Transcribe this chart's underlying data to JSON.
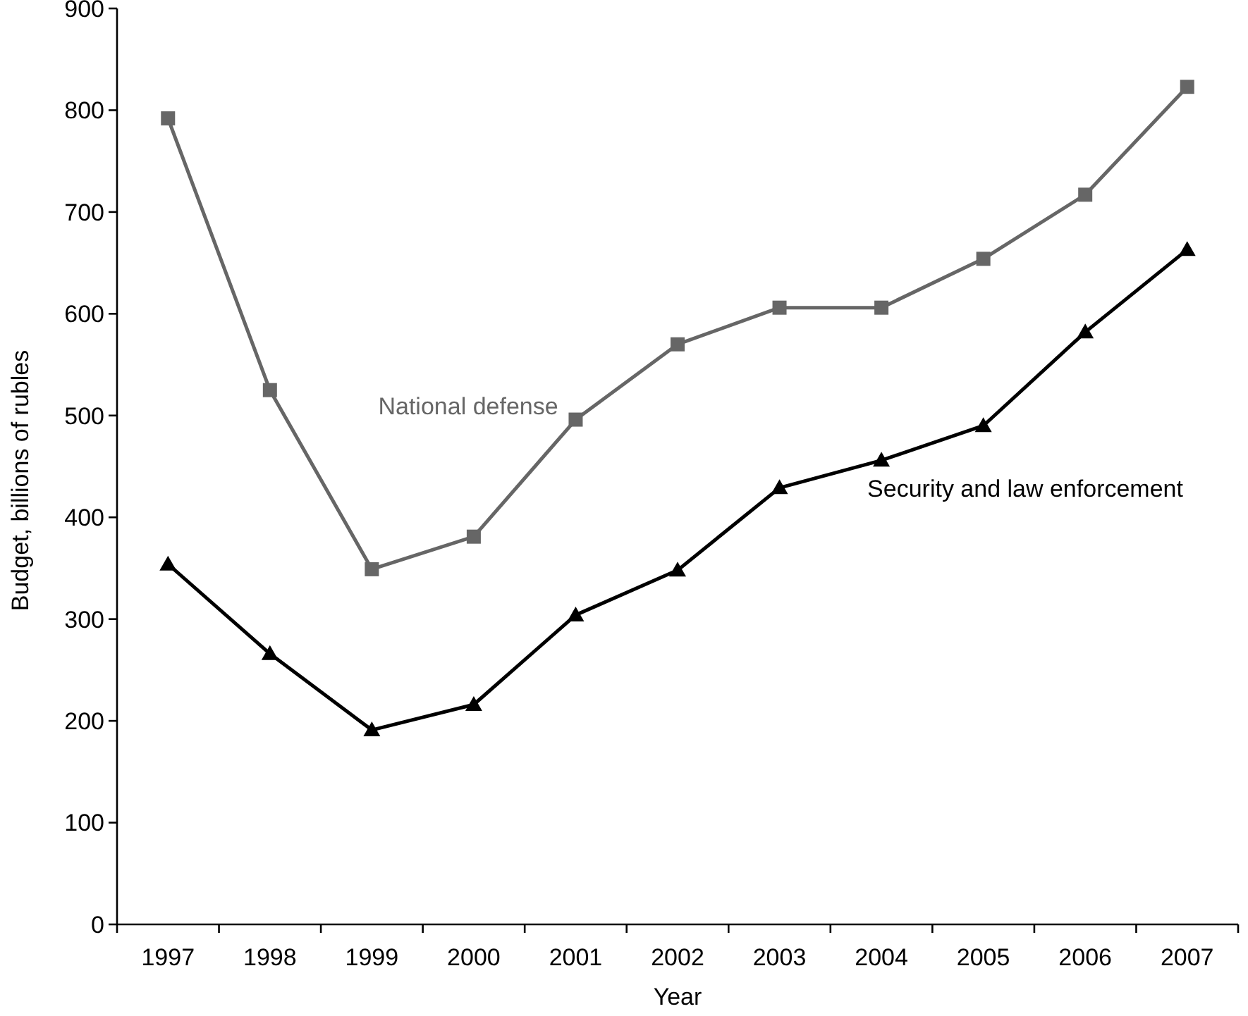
{
  "chart_data": {
    "type": "line",
    "xlabel": "Year",
    "ylabel": "Budget, billions of rubles",
    "categories": [
      "1997",
      "1998",
      "1999",
      "2000",
      "2001",
      "2002",
      "2003",
      "2004",
      "2005",
      "2006",
      "2007"
    ],
    "series": [
      {
        "name": "National defense",
        "color": "#666666",
        "marker": "square",
        "values": [
          792,
          525,
          349,
          381,
          496,
          570,
          606,
          606,
          654,
          717,
          823
        ]
      },
      {
        "name": "Security and law enforcement",
        "color": "#000000",
        "marker": "triangle",
        "values": [
          354,
          266,
          191,
          216,
          304,
          348,
          429,
          456,
          490,
          582,
          663
        ]
      }
    ],
    "ylim": [
      0,
      900
    ],
    "yticks": [
      0,
      100,
      200,
      300,
      400,
      500,
      600,
      700,
      800,
      900
    ],
    "grid": false,
    "legend": false,
    "line_style": "solid"
  }
}
